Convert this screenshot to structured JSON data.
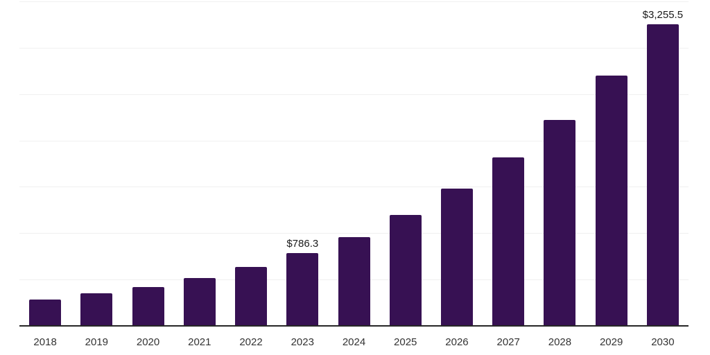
{
  "chart_data": {
    "type": "bar",
    "title": "",
    "xlabel": "",
    "ylabel": "",
    "categories": [
      "2018",
      "2019",
      "2020",
      "2021",
      "2022",
      "2023",
      "2024",
      "2025",
      "2026",
      "2027",
      "2028",
      "2029",
      "2030"
    ],
    "values": [
      283,
      350,
      420,
      515,
      633,
      786.3,
      960,
      1200,
      1480,
      1820,
      2220,
      2700,
      3255.5
    ],
    "bar_labels": [
      "",
      "",
      "",
      "",
      "",
      "$786.3",
      "",
      "",
      "",
      "",
      "",
      "",
      "$3,255.5"
    ],
    "ylim": [
      0,
      3500
    ],
    "gridline_step": 500,
    "grid": true,
    "y_tick_labels_visible": false,
    "legend_position": "none",
    "colors": {
      "bar": "#371153",
      "axis": "#262626",
      "gridline": "#f0f0f0",
      "tick_label": "#333333",
      "value_label": "#1a1a1a",
      "background": "#ffffff"
    }
  }
}
